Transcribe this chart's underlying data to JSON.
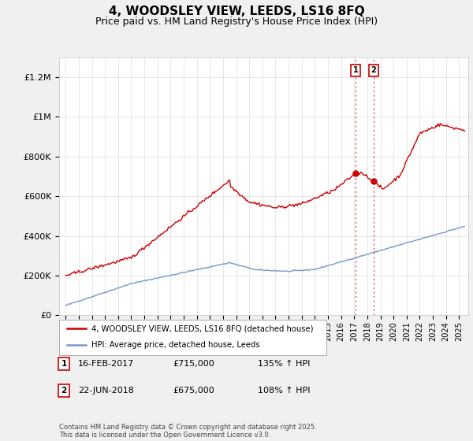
{
  "title": "4, WOODSLEY VIEW, LEEDS, LS16 8FQ",
  "subtitle": "Price paid vs. HM Land Registry's House Price Index (HPI)",
  "title_fontsize": 11,
  "subtitle_fontsize": 9,
  "background_color": "#f0f0f0",
  "plot_bg_color": "#ffffff",
  "ylim": [
    0,
    1300000
  ],
  "yticks": [
    0,
    200000,
    400000,
    600000,
    800000,
    1000000,
    1200000
  ],
  "ytick_labels": [
    "£0",
    "£200K",
    "£400K",
    "£600K",
    "£800K",
    "£1M",
    "£1.2M"
  ],
  "xlim_left": 1994.5,
  "xlim_right": 2025.7,
  "legend_entries": [
    "4, WOODSLEY VIEW, LEEDS, LS16 8FQ (detached house)",
    "HPI: Average price, detached house, Leeds"
  ],
  "legend_colors": [
    "#cc0000",
    "#7799cc"
  ],
  "sale1_date": "16-FEB-2017",
  "sale1_price": "£715,000",
  "sale1_pct": "135% ↑ HPI",
  "sale1_year": 2017.12,
  "sale1_value": 715000,
  "sale2_date": "22-JUN-2018",
  "sale2_price": "£675,000",
  "sale2_pct": "108% ↑ HPI",
  "sale2_year": 2018.47,
  "sale2_value": 675000,
  "footer": "Contains HM Land Registry data © Crown copyright and database right 2025.\nThis data is licensed under the Open Government Licence v3.0.",
  "red_line_color": "#cc0000",
  "blue_line_color": "#7799cc",
  "grid_color": "#dddddd",
  "marker_box_color": "#cc0000"
}
